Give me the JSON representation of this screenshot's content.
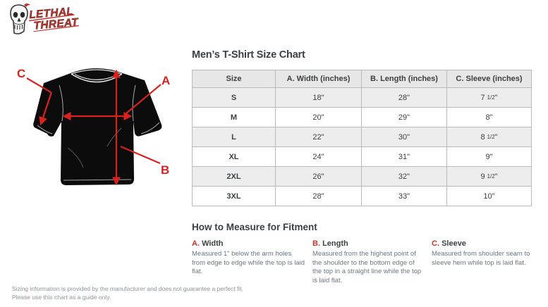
{
  "colors": {
    "accent_red": "#c5332b",
    "arrow_red": "#d8231d",
    "text_dark": "#3b4045",
    "text_body_gray": "#6e7781",
    "text_footnote_gray": "#8d949c",
    "table_header_bg": "#e7e7e7",
    "table_stripe_bg": "#ededed",
    "table_border": "#b7babd",
    "shirt_black": "#0c0c0c"
  },
  "header": {
    "logo_line1": "LETHAL",
    "logo_line2": "THREAT"
  },
  "diagram": {
    "label_a": "A",
    "label_b": "B",
    "label_c": "C"
  },
  "size_chart": {
    "title": "Men’s T-Shirt Size Chart",
    "columns": [
      "Size",
      "A. Width (inches)",
      "B. Length (inches)",
      "C. Sleeve (inches)"
    ],
    "rows": [
      {
        "size": "S",
        "width": "18\"",
        "length": "28\"",
        "sleeve": "7 1/2\""
      },
      {
        "size": "M",
        "width": "20\"",
        "length": "29\"",
        "sleeve": "8\""
      },
      {
        "size": "L",
        "width": "22\"",
        "length": "30\"",
        "sleeve": "8 1/2\""
      },
      {
        "size": "XL",
        "width": "24\"",
        "length": "31\"",
        "sleeve": "9\""
      },
      {
        "size": "2XL",
        "width": "26\"",
        "length": "32\"",
        "sleeve": "9 1/2\""
      },
      {
        "size": "3XL",
        "width": "28\"",
        "length": "33\"",
        "sleeve": "10\""
      }
    ]
  },
  "measure": {
    "title": "How to Measure for Fitment",
    "items": [
      {
        "letter": "A.",
        "name": "Width",
        "text": "Measured 1\" below the arm holes from edge to edge while the top is laid flat."
      },
      {
        "letter": "B.",
        "name": "Length",
        "text": "Measured from the highest point of the shoulder to the bottom edge of the top in a straight line while the top is laid flat."
      },
      {
        "letter": "C.",
        "name": "Sleeve",
        "text": "Measured from shoulder seam to sleeve hem while top is laid flat."
      }
    ]
  },
  "footer": {
    "line1": "Sizing information is provided by the manufacturer and does not guarantee a perfect fit.",
    "line2": "Please use this chart as a guide only."
  }
}
